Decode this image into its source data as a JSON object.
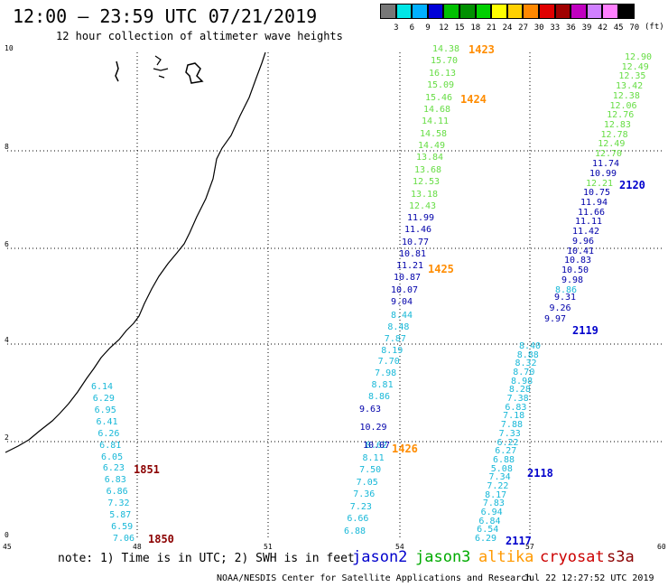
{
  "header": {
    "title": "12:00 – 23:59 UTC 07/21/2019",
    "subtitle": "12 hour collection of altimeter wave heights"
  },
  "legend": {
    "colors": [
      "#777777",
      "#00e6e6",
      "#00b0ff",
      "#0000d8",
      "#00c000",
      "#009000",
      "#00d000",
      "#ffff00",
      "#ffd000",
      "#ff8800",
      "#e00000",
      "#a00000",
      "#c000c0",
      "#d080ff",
      "#ff80ff",
      "#000000"
    ],
    "labels": [
      "3",
      "6",
      "9",
      "12",
      "15",
      "18",
      "21",
      "24",
      "27",
      "30",
      "33",
      "36",
      "39",
      "42",
      "45",
      "70"
    ],
    "unit": "(ft)"
  },
  "axes": {
    "x_ticks": [
      "45",
      "48",
      "51",
      "54",
      "57",
      "60"
    ],
    "y_ticks": [
      "0",
      "2",
      "4",
      "6",
      "8",
      "10"
    ]
  },
  "tracks": [
    {
      "satellite": "jason2",
      "color": "#18b8d8",
      "values": [
        "6.14",
        "6.29",
        "6.95",
        "6.41",
        "6.26",
        "6.81",
        "6.05",
        "6.23",
        "6.83",
        "6.86",
        "7.32",
        "5.87",
        "6.59",
        "7.06"
      ]
    },
    {
      "satellite": "jason2",
      "color": "#18b8d8",
      "values": [
        "6.88",
        "6.66",
        "7.23",
        "7.36",
        "7.05",
        "7.50",
        "8.11",
        "8.62"
      ]
    },
    {
      "satellite": "jason2",
      "color": "#0000aa",
      "values": [
        "10.07",
        "10.29",
        "9.63"
      ]
    },
    {
      "satellite": "jason2",
      "color": "#18b8d8",
      "values": [
        "8.86",
        "8.81",
        "7.98",
        "7.70",
        "8.19",
        "7.87",
        "8.48",
        "8.44"
      ]
    },
    {
      "satellite": "jason2",
      "color": "#0000aa",
      "values": [
        "9.04",
        "10.07",
        "10.87",
        "11.21",
        "10.81",
        "10.77",
        "11.46",
        "11.99"
      ]
    },
    {
      "satellite": "jason3",
      "color": "#66dd44",
      "values": [
        "12.43",
        "13.18",
        "12.53",
        "13.68",
        "13.84",
        "14.49",
        "14.58",
        "14.11",
        "14.68",
        "15.46",
        "15.09",
        "16.13",
        "15.70",
        "14.38"
      ]
    },
    {
      "satellite": "jason2",
      "color": "#18b8d8",
      "values": [
        "6.29",
        "6.54",
        "6.84",
        "6.94",
        "7.83",
        "8.17",
        "7.22",
        "7.34",
        "5.08",
        "6.88",
        "6.27",
        "6.22",
        "7.33",
        "7.88",
        "7.18",
        "6.83",
        "7.38",
        "8.28",
        "8.98",
        "8.70",
        "8.32",
        "8.88",
        "8.40"
      ]
    },
    {
      "satellite": "jason2",
      "color": "#0000aa",
      "values": [
        "9.97",
        "9.26",
        "9.31"
      ]
    },
    {
      "satellite": "jason2",
      "color": "#18b8d8",
      "values": [
        "8.86"
      ]
    },
    {
      "satellite": "jason2",
      "color": "#0000aa",
      "values": [
        "9.98",
        "10.50",
        "10.83",
        "10.41",
        "9.96",
        "11.42",
        "11.11",
        "11.66",
        "11.94",
        "10.75"
      ]
    },
    {
      "satellite": "jason3",
      "color": "#66dd44",
      "values": [
        "12.21"
      ]
    },
    {
      "satellite": "jason2",
      "color": "#0000aa",
      "values": [
        "10.99",
        "11.74"
      ]
    },
    {
      "satellite": "jason3",
      "color": "#66dd44",
      "values": [
        "12.70",
        "12.49",
        "12.78",
        "12.83",
        "12.76",
        "12.06",
        "12.38",
        "13.42",
        "12.35",
        "12.49",
        "12.90"
      ]
    }
  ],
  "time_labels": [
    {
      "text": "1851",
      "color": "#8b0000"
    },
    {
      "text": "1850",
      "color": "#8b0000"
    },
    {
      "text": "1423",
      "color": "#ff8c00"
    },
    {
      "text": "1424",
      "color": "#ff8c00"
    },
    {
      "text": "1425",
      "color": "#ff8c00"
    },
    {
      "text": "1426",
      "color": "#ff8c00"
    },
    {
      "text": "2120",
      "color": "#0000cc"
    },
    {
      "text": "2119",
      "color": "#0000cc"
    },
    {
      "text": "2118",
      "color": "#0000cc"
    },
    {
      "text": "2117",
      "color": "#0000cc"
    }
  ],
  "footer": {
    "note": "note: 1) Time is in UTC; 2) SWH is in feet",
    "satellites": [
      {
        "name": "jason2",
        "color": "#0000cc"
      },
      {
        "name": "jason3",
        "color": "#00aa00"
      },
      {
        "name": "altika",
        "color": "#ff9900"
      },
      {
        "name": "cryosat",
        "color": "#cc0000"
      },
      {
        "name": "s3a",
        "color": "#8b0000"
      }
    ],
    "credit": "NOAA/NESDIS Center for Satellite Applications and Research",
    "timestamp": "Jul 22 12:27:52 UTC 2019"
  }
}
